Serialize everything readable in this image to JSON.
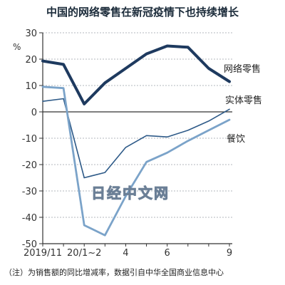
{
  "chart_data": {
    "type": "line",
    "title": "中国的网络零售在新冠疫情下也持续增长",
    "unit_label": "%",
    "note": "（注）为销售额的同比增减率，数据引自中华全国商业信息中心",
    "watermark": "日经中文网",
    "x_tick_labels": [
      "2019/11",
      "20/1~2",
      "4",
      "6",
      "9"
    ],
    "x_tick_positions": [
      0,
      2,
      4,
      6,
      9
    ],
    "ylim": [
      -50,
      30
    ],
    "yticks": [
      30,
      20,
      10,
      0,
      -10,
      -20,
      -30,
      -40,
      -50
    ],
    "series": [
      {
        "name": "网络零售",
        "color": "#1e3a5f",
        "values": [
          {
            "x": 0,
            "y": 19.3
          },
          {
            "x": 1,
            "y": 18.0
          },
          {
            "x": 2,
            "y": 3.0
          },
          {
            "x": 3,
            "y": 11.0
          },
          {
            "x": 4,
            "y": 16.5
          },
          {
            "x": 5,
            "y": 22.0
          },
          {
            "x": 6,
            "y": 25.0
          },
          {
            "x": 7,
            "y": 24.5
          },
          {
            "x": 8,
            "y": 16.5
          },
          {
            "x": 9,
            "y": 11.5
          }
        ]
      },
      {
        "name": "实体零售",
        "color": "#2e5a88",
        "values": [
          {
            "x": 0,
            "y": 4.0
          },
          {
            "x": 1,
            "y": 5.0
          },
          {
            "x": 2,
            "y": -25.0
          },
          {
            "x": 3,
            "y": -23.0
          },
          {
            "x": 4,
            "y": -13.5
          },
          {
            "x": 5,
            "y": -9.0
          },
          {
            "x": 6,
            "y": -9.5
          },
          {
            "x": 7,
            "y": -7.0
          },
          {
            "x": 8,
            "y": -3.5
          },
          {
            "x": 9,
            "y": 1.0
          }
        ]
      },
      {
        "name": "餐饮",
        "color": "#7ba3c9",
        "values": [
          {
            "x": 0,
            "y": 9.5
          },
          {
            "x": 1,
            "y": 9.0
          },
          {
            "x": 2,
            "y": -43.0
          },
          {
            "x": 3,
            "y": -46.8
          },
          {
            "x": 4,
            "y": -32.0
          },
          {
            "x": 5,
            "y": -19.0
          },
          {
            "x": 6,
            "y": -15.5
          },
          {
            "x": 7,
            "y": -11.0
          },
          {
            "x": 8,
            "y": -7.0
          },
          {
            "x": 9,
            "y": -3.0
          }
        ]
      }
    ]
  }
}
